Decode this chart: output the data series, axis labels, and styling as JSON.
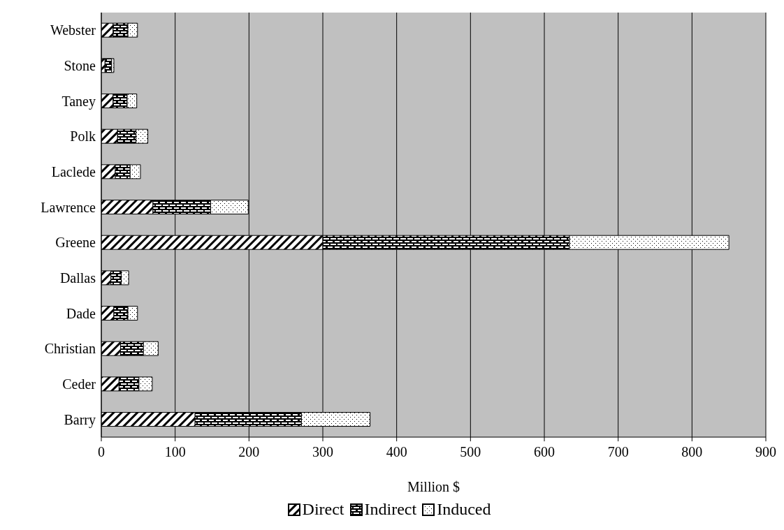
{
  "chart_data": {
    "type": "bar",
    "orientation": "horizontal",
    "stacked": true,
    "xlabel": "Million $",
    "categories": [
      "Webster",
      "Stone",
      "Taney",
      "Polk",
      "Laclede",
      "Lawrence",
      "Greene",
      "Dallas",
      "Dade",
      "Christian",
      "Ceder",
      "Barry"
    ],
    "series": [
      {
        "name": "Direct",
        "color": "#000000",
        "values": [
          16,
          5,
          16,
          22,
          19,
          70,
          300,
          13,
          17,
          26,
          24,
          127
        ]
      },
      {
        "name": "Indirect",
        "color": "#000000",
        "values": [
          20,
          9,
          19,
          25,
          20,
          78,
          334,
          14,
          19,
          31,
          27,
          144
        ]
      },
      {
        "name": "Induced",
        "color": "#000000",
        "values": [
          13,
          3,
          13,
          16,
          14,
          51,
          216,
          10,
          13,
          20,
          18,
          93
        ]
      }
    ],
    "xlim": [
      0,
      900
    ],
    "xticks": [
      0,
      100,
      200,
      300,
      400,
      500,
      600,
      700,
      800,
      900
    ],
    "grid": "x",
    "legend": "bottom"
  }
}
